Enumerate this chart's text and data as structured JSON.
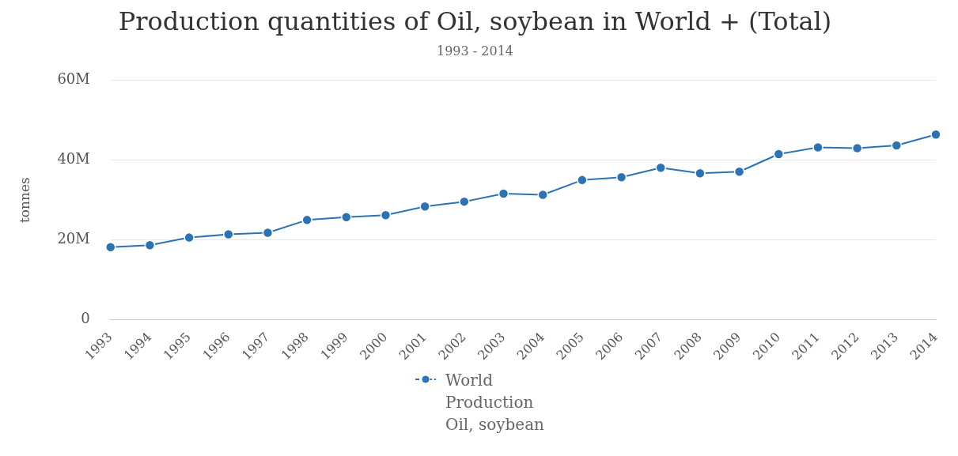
{
  "chart_data": {
    "type": "line",
    "title": "Production quantities of Oil, soybean in World + (Total)",
    "subtitle": "1993 - 2014",
    "ylabel": "tonnes",
    "categories": [
      "1993",
      "1994",
      "1995",
      "1996",
      "1997",
      "1998",
      "1999",
      "2000",
      "2001",
      "2002",
      "2003",
      "2004",
      "2005",
      "2006",
      "2007",
      "2008",
      "2009",
      "2010",
      "2011",
      "2012",
      "2013",
      "2014"
    ],
    "series": [
      {
        "name": "World\nProduction\nOil, soybean",
        "color": "#2b73b3",
        "values": [
          18.2,
          18.7,
          20.6,
          21.4,
          21.8,
          25.0,
          25.7,
          26.2,
          28.4,
          29.6,
          31.6,
          31.3,
          35.0,
          35.7,
          38.1,
          36.7,
          37.1,
          41.5,
          43.2,
          43.0,
          43.7,
          46.4
        ]
      }
    ],
    "ylim": [
      0,
      60
    ],
    "yticks": [
      {
        "value": 0,
        "label": "0"
      },
      {
        "value": 20,
        "label": "20M"
      },
      {
        "value": 40,
        "label": "40M"
      },
      {
        "value": 60,
        "label": "60M"
      }
    ],
    "grid": "y",
    "legend": "bottom",
    "marker": "circle",
    "line_style": "solid"
  }
}
